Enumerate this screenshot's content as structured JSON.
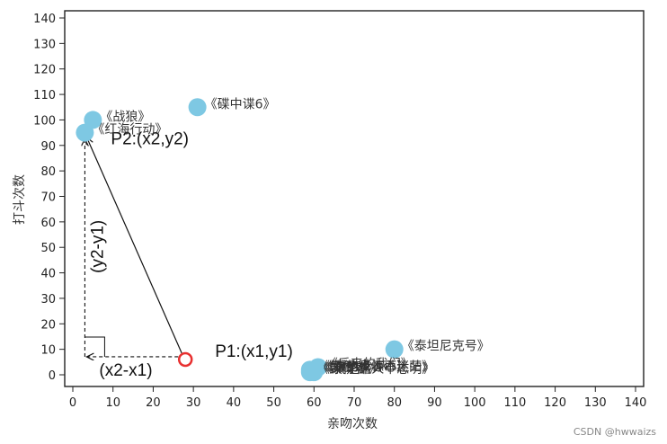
{
  "chart_data": {
    "type": "scatter",
    "title": "",
    "xlabel": "亲吻次数",
    "ylabel": "打斗次数",
    "xlim": [
      0,
      140
    ],
    "ylim": [
      0,
      140
    ],
    "x_ticks": [
      0,
      10,
      20,
      30,
      40,
      50,
      60,
      70,
      80,
      90,
      100,
      110,
      120,
      130,
      140
    ],
    "y_ticks": [
      0,
      10,
      20,
      30,
      40,
      50,
      60,
      70,
      80,
      90,
      100,
      110,
      120,
      130,
      140
    ],
    "grid": false,
    "points": [
      {
        "label": "《战狼》",
        "x": 5,
        "y": 100
      },
      {
        "label": "《红海行动》",
        "x": 3,
        "y": 95
      },
      {
        "label": "《碟中谍6》",
        "x": 31,
        "y": 105
      },
      {
        "label": "《泰坦尼克号》",
        "x": 80,
        "y": 10
      },
      {
        "label": "《前任3》",
        "x": 59,
        "y": 2
      },
      {
        "label": "《新步步惊心》",
        "x": 60,
        "y": 2
      },
      {
        "label": "《后来的我们》",
        "x": 61,
        "y": 3
      },
      {
        "label": "《谁的青春不迷茫》",
        "x": 60,
        "y": 2
      },
      {
        "label": "《致青春》",
        "x": 59,
        "y": 1
      },
      {
        "label": "《我是路人甲志明》",
        "x": 60,
        "y": 1
      }
    ],
    "point_color": "#7ec8e3",
    "test_point": {
      "x": 28,
      "y": 6,
      "color": "#e83030"
    },
    "annotations": {
      "p1": "P1:(x1,y1)",
      "p2": "P2:(x2,y2)",
      "dx": "(x2-x1)",
      "dy": "(y2-y1)"
    }
  },
  "watermark": "CSDN @hwwaizs"
}
